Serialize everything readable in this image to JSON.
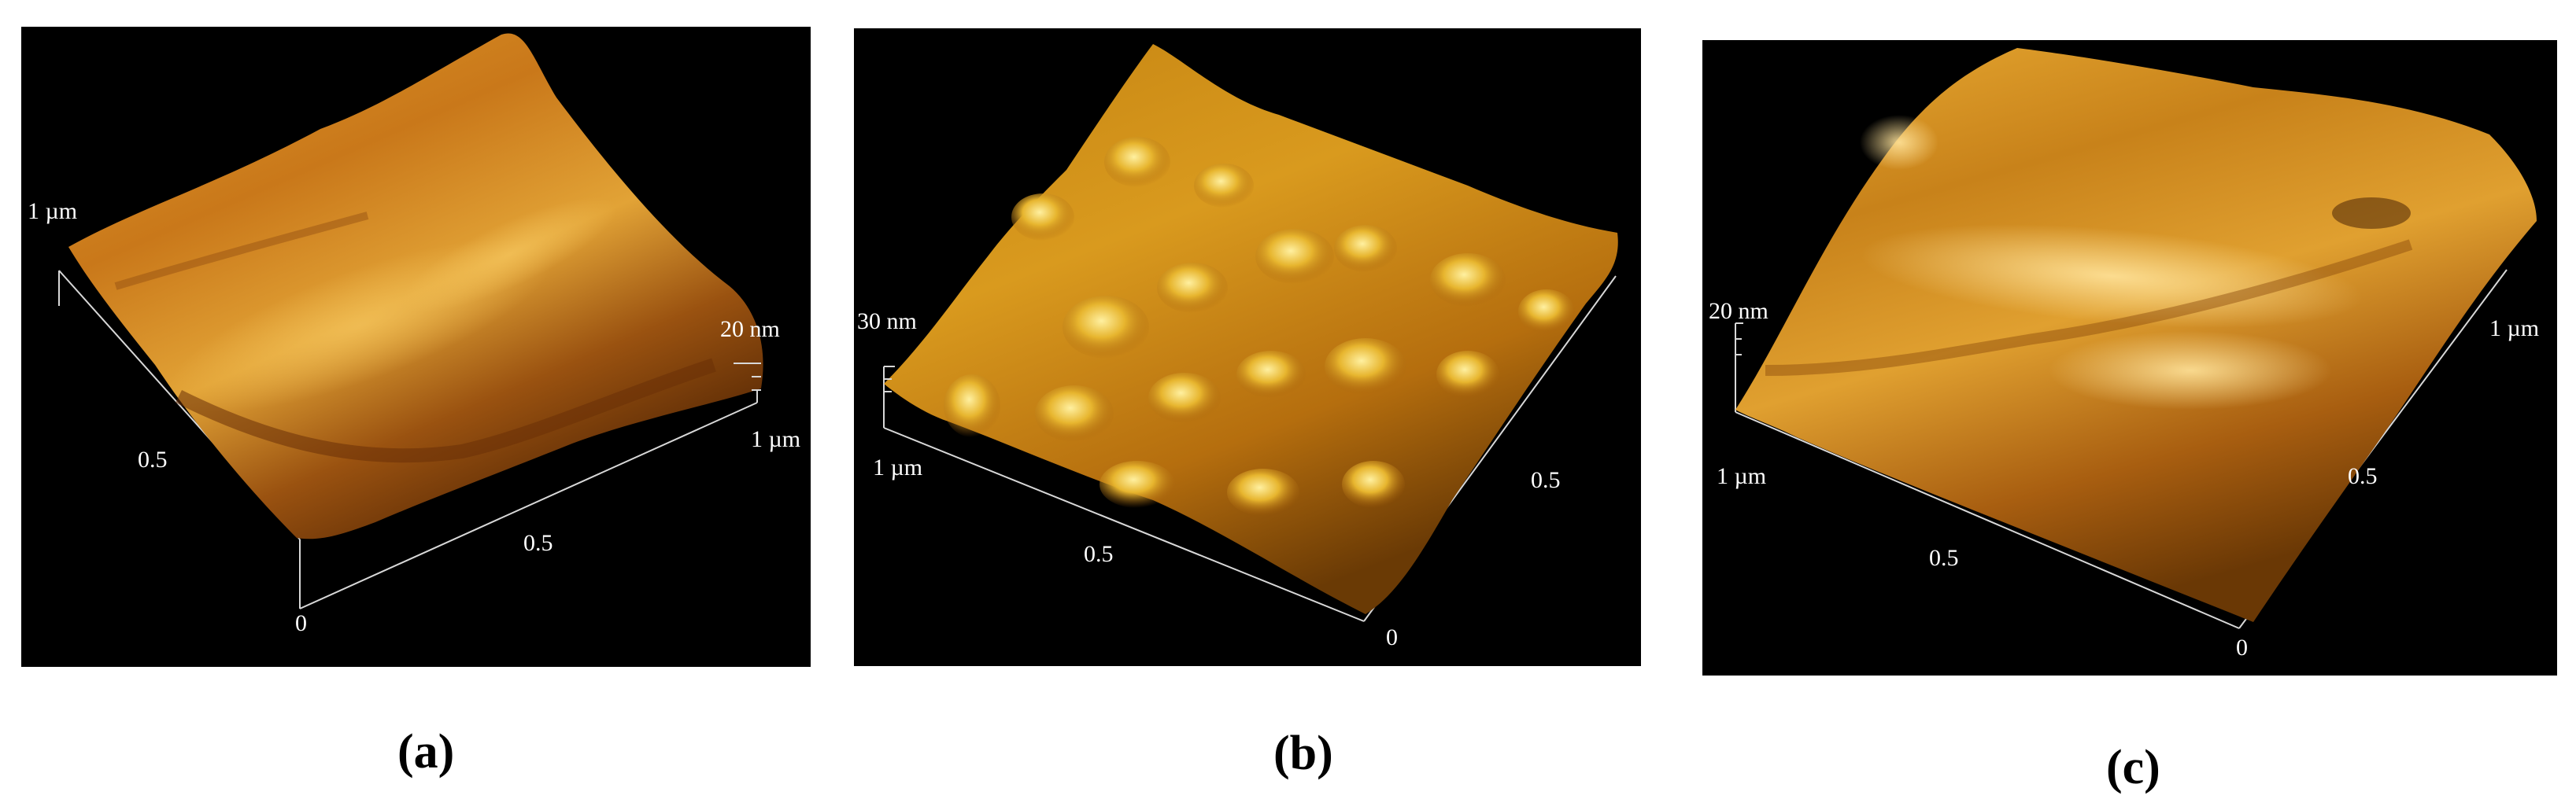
{
  "figure": {
    "panels": [
      {
        "id": "a",
        "caption": "(a)",
        "height_scale_label": "20 nm",
        "axis_labels": {
          "y_max": "1 µm",
          "y_mid": "0.5",
          "origin": "0",
          "x_mid": "0.5",
          "x_max": "1 µm"
        },
        "surface_colors": {
          "dark": "#5a2a05",
          "mid": "#b8650f",
          "light": "#e09a2a",
          "highlight": "#f3c25a"
        }
      },
      {
        "id": "b",
        "caption": "(b)",
        "height_scale_label": "30 nm",
        "axis_labels": {
          "y_max": "1 µm",
          "y_mid": "0.5",
          "origin": "0",
          "x_mid": "0.5"
        },
        "surface_colors": {
          "dark": "#6a3a05",
          "mid": "#c58412",
          "light": "#e7b52e",
          "highlight": "#fff0a0"
        }
      },
      {
        "id": "c",
        "caption": "(c)",
        "height_scale_label": "20 nm",
        "axis_labels": {
          "y_max": "1 µm",
          "y_mid": "0.5",
          "origin": "0",
          "x_mid": "0.5",
          "x_max": "1 µm"
        },
        "surface_colors": {
          "dark": "#6a3805",
          "mid": "#c8821a",
          "light": "#e8aa32",
          "highlight": "#ffe39a"
        }
      }
    ]
  }
}
